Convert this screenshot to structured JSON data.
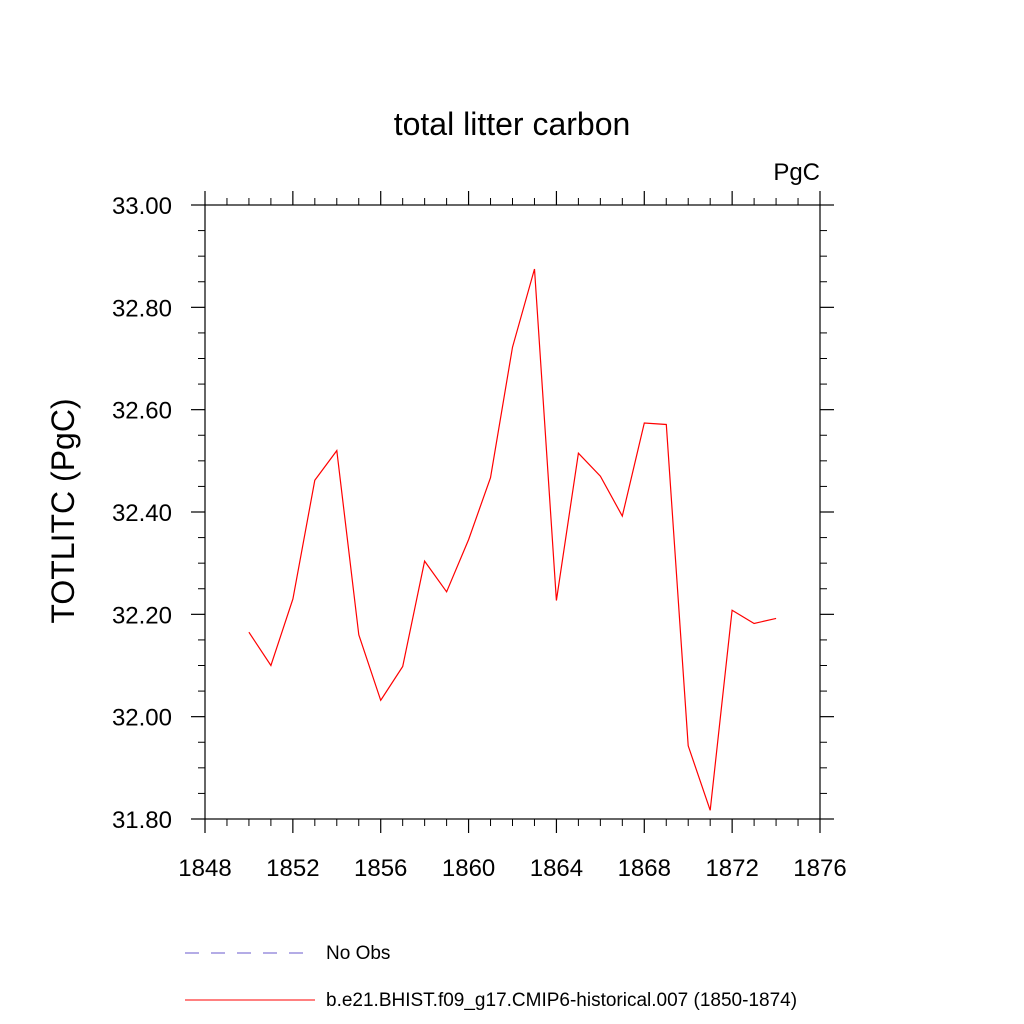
{
  "chart_data": {
    "type": "line",
    "title": "total litter carbon",
    "units": "PgC",
    "xlabel": "",
    "ylabel": "TOTLITC  (PgC)",
    "xlim": [
      1848,
      1876
    ],
    "ylim": [
      31.8,
      33.0
    ],
    "x_ticks": [
      "1848",
      "1852",
      "1856",
      "1860",
      "1864",
      "1868",
      "1872",
      "1876"
    ],
    "y_ticks": [
      "31.80",
      "32.00",
      "32.20",
      "32.40",
      "32.60",
      "32.80",
      "33.00"
    ],
    "grid": false,
    "series": [
      {
        "name": "b.e21.BHIST.f09_g17.CMIP6-historical.007 (1850-1874)",
        "color": "#ff0000",
        "style": "solid",
        "x": [
          1850,
          1851,
          1852,
          1853,
          1854,
          1855,
          1856,
          1857,
          1858,
          1859,
          1860,
          1861,
          1862,
          1863,
          1864,
          1865,
          1866,
          1867,
          1868,
          1869,
          1870,
          1871,
          1872,
          1873,
          1874
        ],
        "values": [
          32.165,
          32.1,
          32.23,
          32.462,
          32.52,
          32.16,
          32.032,
          32.098,
          32.304,
          32.244,
          32.346,
          32.467,
          32.722,
          32.875,
          32.227,
          32.515,
          32.47,
          32.392,
          32.574,
          32.571,
          31.943,
          31.817,
          32.208,
          32.182,
          32.192
        ]
      }
    ],
    "legend": {
      "placement": "bottom",
      "entries": [
        {
          "label": "No Obs",
          "color": "#6a5acd",
          "style": "dashed"
        },
        {
          "label": "b.e21.BHIST.f09_g17.CMIP6-historical.007 (1850-1874)",
          "color": "#ff0000",
          "style": "solid"
        }
      ]
    }
  }
}
